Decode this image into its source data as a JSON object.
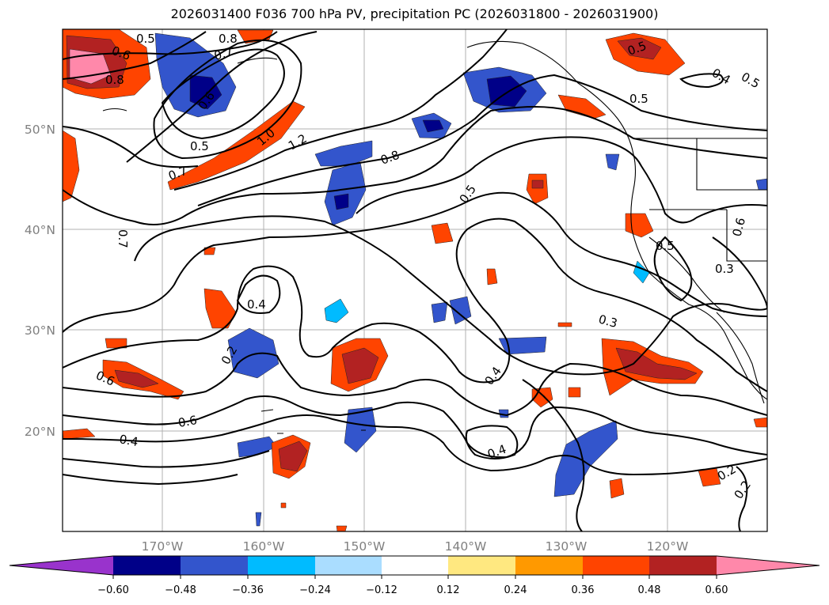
{
  "title": "2026031400 F036 700 hPa PV, precipitation PC (2026031800 - 2026031900)",
  "map": {
    "lat_labels": [
      "50°N",
      "40°N",
      "30°N",
      "20°N"
    ],
    "lon_labels": [
      "170°W",
      "160°W",
      "150°W",
      "140°W",
      "130°W",
      "120°W"
    ],
    "contour_labels": [
      "0.5",
      "0.8",
      "0.6",
      "0.8",
      "0.7",
      "0.6",
      "0.5",
      "0.7",
      "1.0",
      "1.2",
      "0.8",
      "0.5",
      "0.7",
      "0.4",
      "0.6",
      "0.6",
      "0.4",
      "0.4",
      "0.4",
      "0.3",
      "0.5",
      "0.6",
      "0.3",
      "0.5",
      "0.4",
      "0.5",
      "0.2",
      "0.2",
      "0.5",
      "0.2"
    ]
  },
  "colorbar": {
    "ticks": [
      "−0.60",
      "−0.48",
      "−0.36",
      "−0.24",
      "−0.12",
      "0.12",
      "0.24",
      "0.36",
      "0.48",
      "0.60"
    ],
    "colors": [
      "#9933cc",
      "#000088",
      "#3355cc",
      "#00bbff",
      "#aaddff",
      "#ffffff",
      "#ffe880",
      "#ff9900",
      "#ff4400",
      "#b22222",
      "#ff88aa"
    ]
  }
}
